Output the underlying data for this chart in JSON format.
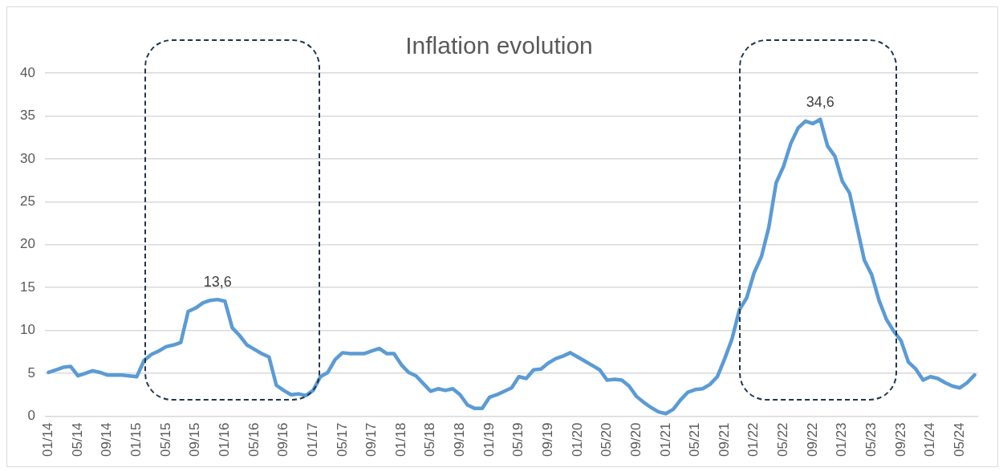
{
  "chart_data": {
    "type": "line",
    "title": "Inflation evolution",
    "categories": [
      "01/14",
      null,
      null,
      null,
      "05/14",
      null,
      null,
      null,
      "09/14",
      null,
      null,
      null,
      "01/15",
      null,
      null,
      null,
      "05/15",
      null,
      null,
      null,
      "09/15",
      null,
      null,
      null,
      "01/16",
      null,
      null,
      null,
      "05/16",
      null,
      null,
      null,
      "09/16",
      null,
      null,
      null,
      "01/17",
      null,
      null,
      null,
      "05/17",
      null,
      null,
      null,
      "09/17",
      null,
      null,
      null,
      "01/18",
      null,
      null,
      null,
      "05/18",
      null,
      null,
      null,
      "09/18",
      null,
      null,
      null,
      "01/19",
      null,
      null,
      null,
      "05/19",
      null,
      null,
      null,
      "09/19",
      null,
      null,
      null,
      "01/20",
      null,
      null,
      null,
      "05/20",
      null,
      null,
      null,
      "09/20",
      null,
      null,
      null,
      "01/21",
      null,
      null,
      null,
      "05/21",
      null,
      null,
      null,
      "09/21",
      null,
      null,
      null,
      "01/22",
      null,
      null,
      null,
      "05/22",
      null,
      null,
      null,
      "09/22",
      null,
      null,
      null,
      "01/23",
      null,
      null,
      null,
      "05/23",
      null,
      null,
      null,
      "09/23",
      null,
      null,
      null,
      "01/24",
      null,
      null,
      null,
      "05/24",
      null,
      null
    ],
    "series": [
      {
        "color": "#5b9bd5",
        "values": [
          5.1,
          5.4,
          5.7,
          5.8,
          4.7,
          5.0,
          5.3,
          5.1,
          4.8,
          4.8,
          4.8,
          4.7,
          4.6,
          6.5,
          7.2,
          7.6,
          8.1,
          8.3,
          8.6,
          12.2,
          12.6,
          13.2,
          13.5,
          13.6,
          13.4,
          10.3,
          9.4,
          8.3,
          7.8,
          7.3,
          6.9,
          3.6,
          3.0,
          2.5,
          2.6,
          2.4,
          3.0,
          4.6,
          5.1,
          6.6,
          7.4,
          7.3,
          7.3,
          7.3,
          7.6,
          7.9,
          7.3,
          7.3,
          6.0,
          5.1,
          4.7,
          3.8,
          2.9,
          3.2,
          3.0,
          3.2,
          2.5,
          1.3,
          0.9,
          0.9,
          2.2,
          2.5,
          2.9,
          3.3,
          4.6,
          4.4,
          5.4,
          5.5,
          6.2,
          6.7,
          7.0,
          7.4,
          6.9,
          6.4,
          5.9,
          5.4,
          4.2,
          4.3,
          4.2,
          3.5,
          2.3,
          1.6,
          1.0,
          0.5,
          0.3,
          0.8,
          1.9,
          2.8,
          3.1,
          3.2,
          3.7,
          4.6,
          6.7,
          9.0,
          12.4,
          13.8,
          16.7,
          18.6,
          22.0,
          27.2,
          29.1,
          31.8,
          33.6,
          34.4,
          34.1,
          34.6,
          31.5,
          30.3,
          27.4,
          26.0,
          22.1,
          18.2,
          16.5,
          13.5,
          11.3,
          9.9,
          8.8,
          6.3,
          5.5,
          4.2,
          4.6,
          4.4,
          3.9,
          3.5,
          3.3,
          3.9,
          4.8
        ],
        "value_labels": [
          null,
          null,
          null,
          null,
          null,
          null,
          null,
          null,
          null,
          null,
          null,
          null,
          null,
          null,
          null,
          null,
          null,
          null,
          null,
          null,
          null,
          null,
          null,
          "13,6",
          null,
          null,
          null,
          null,
          null,
          null,
          null,
          null,
          null,
          null,
          null,
          null,
          null,
          null,
          null,
          null,
          null,
          null,
          null,
          null,
          null,
          null,
          null,
          null,
          null,
          null,
          null,
          null,
          null,
          null,
          null,
          null,
          null,
          null,
          null,
          null,
          null,
          null,
          null,
          null,
          null,
          null,
          null,
          null,
          null,
          null,
          null,
          null,
          null,
          null,
          null,
          null,
          null,
          null,
          null,
          null,
          null,
          null,
          null,
          null,
          null,
          null,
          null,
          null,
          null,
          null,
          null,
          null,
          null,
          null,
          null,
          null,
          null,
          null,
          null,
          null,
          null,
          null,
          null,
          null,
          null,
          "34,6",
          null,
          null,
          null,
          null,
          null,
          null,
          null,
          null,
          null,
          null,
          null,
          null,
          null,
          null,
          null,
          null,
          null,
          null,
          null,
          null,
          null
        ]
      }
    ],
    "ylim": [
      0,
      40
    ],
    "yticks": [
      0,
      5,
      10,
      15,
      20,
      25,
      30,
      35,
      40
    ],
    "grid": "y",
    "marker": "none"
  }
}
